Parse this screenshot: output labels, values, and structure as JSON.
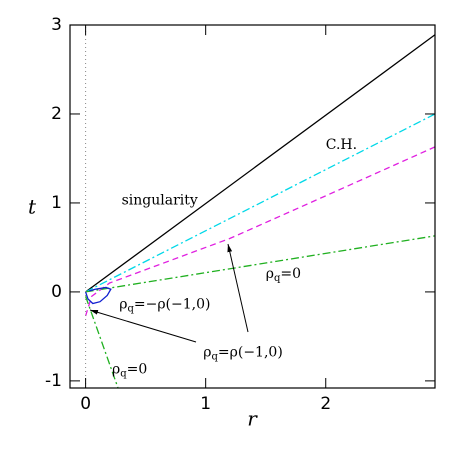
{
  "chart_data": {
    "type": "line",
    "xlabel": "r",
    "ylabel": "t",
    "xlim": [
      -0.13,
      2.91
    ],
    "ylim": [
      -1.08,
      3
    ],
    "xticks": [
      0,
      1,
      2
    ],
    "yticks": [
      -1,
      0,
      1,
      2,
      3
    ],
    "series": [
      {
        "color": "#000000",
        "dash": "solid",
        "x": [
          0,
          2.91
        ],
        "values": [
          0,
          2.89
        ]
      },
      {
        "color": "#00d8e8",
        "dash": "dashdot",
        "x": [
          0,
          2.91
        ],
        "values": [
          0,
          2.0
        ]
      },
      {
        "color": "#e020e0",
        "dash": "dashed",
        "x": [
          0,
          0.05,
          0.2,
          0.6,
          1.2,
          2,
          2.91
        ],
        "values": [
          -0.27,
          -0.05,
          0.1,
          0.3,
          0.6,
          1.08,
          1.63
        ]
      },
      {
        "color": "#20b020",
        "dash": "dashdot",
        "x": [
          0,
          2.91
        ],
        "values": [
          0,
          0.63
        ]
      },
      {
        "color": "#20b020",
        "dash": "dashdot",
        "x": [
          0,
          0.27
        ],
        "values": [
          -0.05,
          -1.08
        ]
      },
      {
        "color": "#1020d0",
        "dash": "solid",
        "x": [
          0,
          0.02,
          0.06,
          0.12,
          0.18,
          0.21,
          0.17,
          0.08,
          0.03
        ],
        "values": [
          0,
          -0.08,
          -0.13,
          -0.11,
          -0.04,
          0.03,
          0.05,
          0.03,
          0.01
        ]
      },
      {
        "color": "#888888",
        "dash": "dotted",
        "x": [
          0,
          0
        ],
        "values": [
          -1.08,
          3
        ]
      }
    ],
    "annotations": [
      {
        "text": "singularity",
        "x": 0.3,
        "y": 1.03
      },
      {
        "text": "C.H.",
        "x": 2.0,
        "y": 1.65
      },
      {
        "text": "ρq=0",
        "x": 1.5,
        "y": 0.2
      },
      {
        "text": "ρq=−ρ(−1,0)",
        "x": 0.28,
        "y": -0.14
      },
      {
        "text": "ρq=ρ(−1,0)",
        "x": 0.98,
        "y": -0.68
      },
      {
        "text": "ρq=0",
        "x": 0.22,
        "y": -0.87
      }
    ]
  }
}
